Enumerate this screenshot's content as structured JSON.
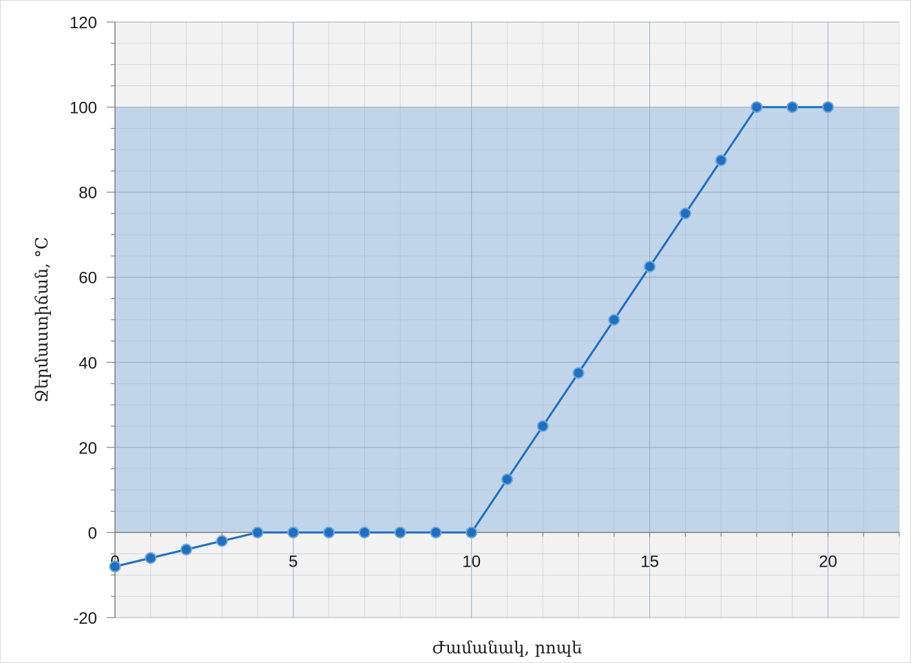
{
  "chart_data": {
    "type": "line",
    "title": "",
    "xlabel": "Ժամանակ, րոպե",
    "ylabel": "Ջերմաստիճան, °C",
    "xlim": [
      0,
      22
    ],
    "ylim": [
      -20,
      120
    ],
    "x_ticks": [
      0,
      5,
      10,
      15,
      20
    ],
    "y_ticks": [
      -20,
      0,
      20,
      40,
      60,
      80,
      100,
      120
    ],
    "x_minor_step": 1,
    "y_minor_step": 5,
    "grid": true,
    "shaded_band": {
      "y_from": 0,
      "y_to": 100,
      "color": "#c0d5ea"
    },
    "background_color": "#f2f2f2",
    "series": [
      {
        "color": "#1f6fbf",
        "x": [
          0,
          1,
          2,
          3,
          4,
          5,
          6,
          7,
          8,
          9,
          10,
          11,
          12,
          13,
          14,
          15,
          16,
          17,
          18,
          19,
          20
        ],
        "y": [
          -8,
          -6,
          -4,
          -2,
          0,
          0,
          0,
          0,
          0,
          0,
          0,
          12.5,
          25,
          37.5,
          50,
          62.5,
          75,
          87.5,
          100,
          100,
          100
        ]
      }
    ]
  }
}
